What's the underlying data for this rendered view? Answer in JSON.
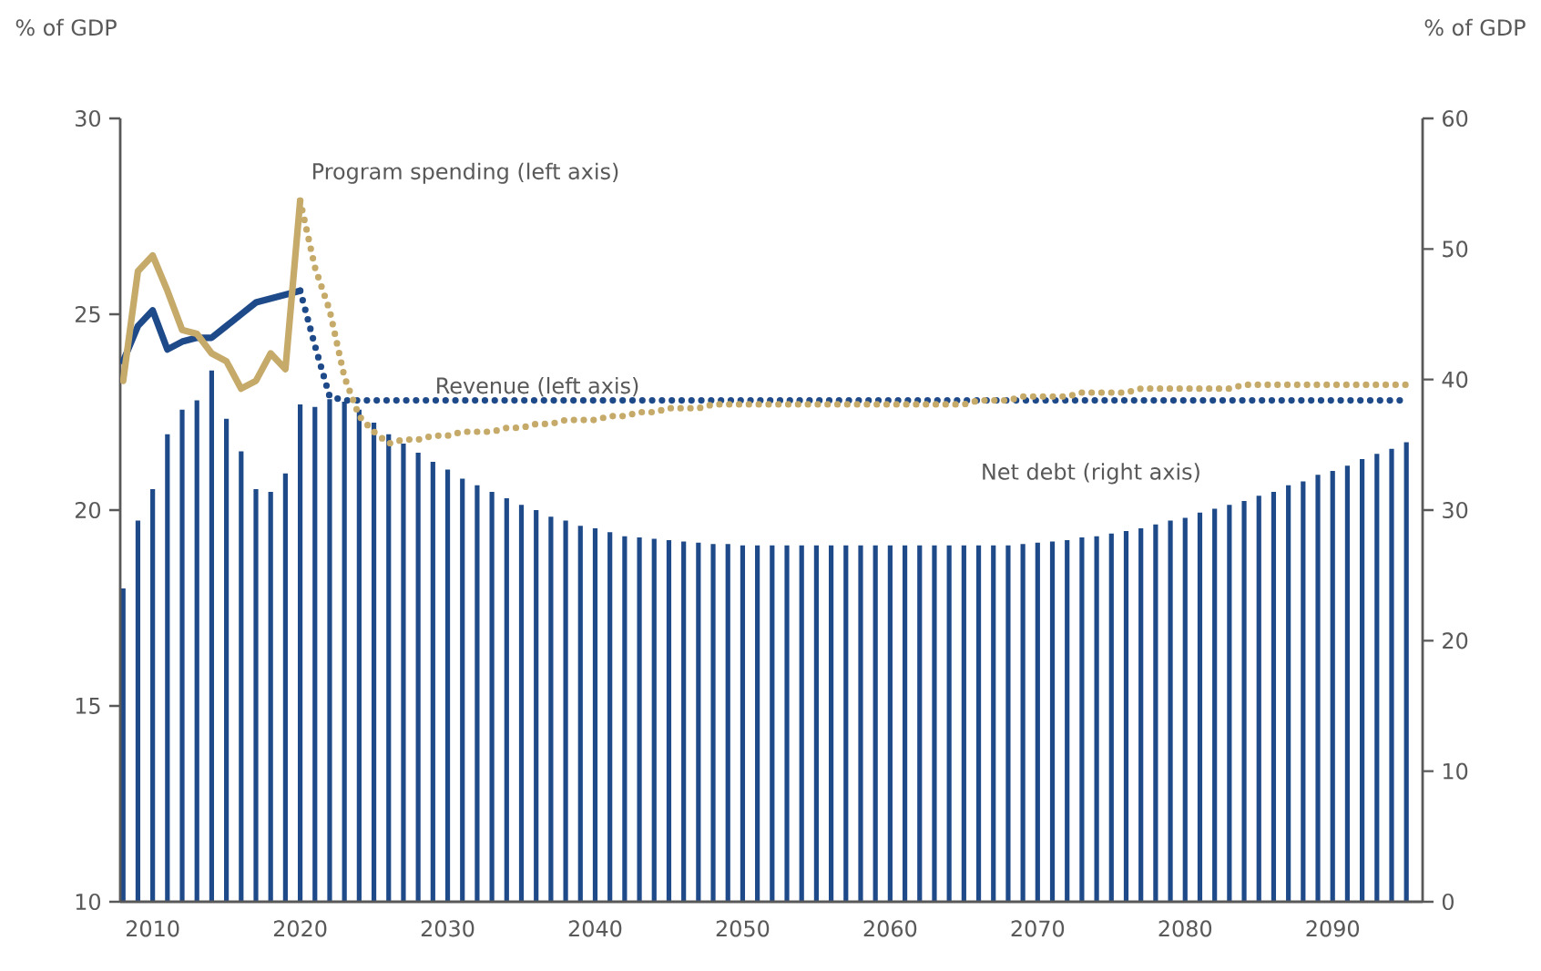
{
  "chart_data": {
    "type": "line",
    "ylabel": "% of GDP",
    "y2label": "% of GDP",
    "xlim": [
      2007.8,
      2096.1
    ],
    "xticks": [
      2010,
      2020,
      2030,
      2040,
      2050,
      2060,
      2070,
      2080,
      2090
    ],
    "ylim": [
      10,
      30
    ],
    "yticks": [
      10,
      15,
      20,
      25,
      30
    ],
    "y2lim": [
      0,
      60
    ],
    "y2ticks": [
      0,
      10,
      20,
      30,
      40,
      50,
      60
    ],
    "series": [
      {
        "type": "bar",
        "axis": "y2",
        "name": "Net debt (right axis)",
        "color": "#1f4a8a",
        "x": [
          2008,
          2009,
          2010,
          2011,
          2012,
          2013,
          2014,
          2015,
          2016,
          2017,
          2018,
          2019,
          2020,
          2021,
          2022,
          2023,
          2024,
          2025,
          2026,
          2027,
          2028,
          2029,
          2030,
          2031,
          2032,
          2033,
          2034,
          2035,
          2036,
          2037,
          2038,
          2039,
          2040,
          2041,
          2042,
          2043,
          2044,
          2045,
          2046,
          2047,
          2048,
          2049,
          2050,
          2051,
          2052,
          2053,
          2054,
          2055,
          2056,
          2057,
          2058,
          2059,
          2060,
          2061,
          2062,
          2063,
          2064,
          2065,
          2066,
          2067,
          2068,
          2069,
          2070,
          2071,
          2072,
          2073,
          2074,
          2075,
          2076,
          2077,
          2078,
          2079,
          2080,
          2081,
          2082,
          2083,
          2084,
          2085,
          2086,
          2087,
          2088,
          2089,
          2090,
          2091,
          2092,
          2093,
          2094,
          2095
        ],
        "values": [
          24.0,
          29.2,
          31.6,
          35.8,
          37.7,
          38.4,
          40.7,
          37.0,
          34.5,
          31.6,
          31.4,
          32.8,
          38.1,
          37.9,
          38.5,
          38.3,
          37.7,
          36.7,
          35.8,
          35.1,
          34.4,
          33.7,
          33.1,
          32.4,
          31.9,
          31.4,
          30.9,
          30.4,
          30.0,
          29.5,
          29.2,
          28.8,
          28.6,
          28.3,
          28.0,
          27.9,
          27.8,
          27.7,
          27.6,
          27.5,
          27.4,
          27.4,
          27.3,
          27.3,
          27.3,
          27.3,
          27.3,
          27.3,
          27.3,
          27.3,
          27.3,
          27.3,
          27.3,
          27.3,
          27.3,
          27.3,
          27.3,
          27.3,
          27.3,
          27.3,
          27.3,
          27.4,
          27.5,
          27.6,
          27.7,
          27.9,
          28.0,
          28.2,
          28.4,
          28.6,
          28.9,
          29.2,
          29.4,
          29.8,
          30.1,
          30.4,
          30.7,
          31.1,
          31.4,
          31.9,
          32.2,
          32.7,
          33.0,
          33.4,
          33.9,
          34.3,
          34.7,
          35.2
        ]
      },
      {
        "color": "#1f4a8a",
        "line_style": "solid",
        "x": [
          2008,
          2009,
          2010,
          2011,
          2012,
          2013,
          2014,
          2015,
          2016,
          2017,
          2018,
          2019,
          2020
        ],
        "values": [
          23.8,
          24.7,
          25.1,
          24.1,
          24.3,
          24.4,
          24.4,
          24.7,
          25.0,
          25.3,
          25.4,
          25.5,
          25.6
        ]
      },
      {
        "name": "Revenue (left axis)",
        "color": "#1f4a8a",
        "line_style": "dotted",
        "x": [
          2020,
          2021,
          2022,
          2023,
          2024,
          2025,
          2026,
          2027,
          2028,
          2029,
          2030,
          2031,
          2032,
          2033,
          2034,
          2035,
          2036,
          2037,
          2038,
          2039,
          2040,
          2041,
          2042,
          2043,
          2044,
          2045,
          2046,
          2047,
          2048,
          2049,
          2050,
          2051,
          2052,
          2053,
          2054,
          2055,
          2056,
          2057,
          2058,
          2059,
          2060,
          2061,
          2062,
          2063,
          2064,
          2065,
          2066,
          2067,
          2068,
          2069,
          2070,
          2071,
          2072,
          2073,
          2074,
          2075,
          2076,
          2077,
          2078,
          2079,
          2080,
          2081,
          2082,
          2083,
          2084,
          2085,
          2086,
          2087,
          2088,
          2089,
          2090,
          2091,
          2092,
          2093,
          2094,
          2095
        ],
        "values": [
          25.6,
          24.2,
          22.9,
          22.8,
          22.8,
          22.8,
          22.8,
          22.8,
          22.8,
          22.8,
          22.8,
          22.8,
          22.8,
          22.8,
          22.8,
          22.8,
          22.8,
          22.8,
          22.8,
          22.8,
          22.8,
          22.8,
          22.8,
          22.8,
          22.8,
          22.8,
          22.8,
          22.8,
          22.8,
          22.8,
          22.8,
          22.8,
          22.8,
          22.8,
          22.8,
          22.8,
          22.8,
          22.8,
          22.8,
          22.8,
          22.8,
          22.8,
          22.8,
          22.8,
          22.8,
          22.8,
          22.8,
          22.8,
          22.8,
          22.8,
          22.8,
          22.8,
          22.8,
          22.8,
          22.8,
          22.8,
          22.8,
          22.8,
          22.8,
          22.8,
          22.8,
          22.8,
          22.8,
          22.8,
          22.8,
          22.8,
          22.8,
          22.8,
          22.8,
          22.8,
          22.8,
          22.8,
          22.8,
          22.8,
          22.8,
          22.8
        ]
      },
      {
        "name": "Program spending (left axis)",
        "color": "#c6aa6a",
        "line_style": "solid",
        "x": [
          2008,
          2009,
          2010,
          2011,
          2012,
          2013,
          2014,
          2015,
          2016,
          2017,
          2018,
          2019,
          2020
        ],
        "values": [
          23.3,
          26.1,
          26.5,
          25.6,
          24.6,
          24.5,
          24.0,
          23.8,
          23.1,
          23.3,
          24.0,
          23.6,
          27.9
        ]
      },
      {
        "color": "#c6aa6a",
        "line_style": "dotted",
        "x": [
          2020,
          2021,
          2022,
          2023,
          2024,
          2025,
          2026,
          2027,
          2028,
          2029,
          2030,
          2031,
          2032,
          2033,
          2034,
          2035,
          2036,
          2037,
          2038,
          2039,
          2040,
          2041,
          2042,
          2043,
          2044,
          2045,
          2046,
          2047,
          2048,
          2049,
          2050,
          2051,
          2052,
          2053,
          2054,
          2055,
          2056,
          2057,
          2058,
          2059,
          2060,
          2061,
          2062,
          2063,
          2064,
          2065,
          2066,
          2067,
          2068,
          2069,
          2070,
          2071,
          2072,
          2073,
          2074,
          2075,
          2076,
          2077,
          2078,
          2079,
          2080,
          2081,
          2082,
          2083,
          2084,
          2085,
          2086,
          2087,
          2088,
          2089,
          2090,
          2091,
          2092,
          2093,
          2094,
          2095
        ],
        "values": [
          27.9,
          26.2,
          25.1,
          23.4,
          22.4,
          22.0,
          21.7,
          21.8,
          21.8,
          21.9,
          21.9,
          22.0,
          22.0,
          22.0,
          22.1,
          22.1,
          22.2,
          22.2,
          22.3,
          22.3,
          22.3,
          22.4,
          22.4,
          22.5,
          22.5,
          22.6,
          22.6,
          22.6,
          22.7,
          22.7,
          22.7,
          22.7,
          22.7,
          22.7,
          22.7,
          22.7,
          22.7,
          22.7,
          22.7,
          22.7,
          22.7,
          22.7,
          22.7,
          22.7,
          22.7,
          22.7,
          22.8,
          22.8,
          22.8,
          22.9,
          22.9,
          22.9,
          22.9,
          23.0,
          23.0,
          23.0,
          23.0,
          23.1,
          23.1,
          23.1,
          23.1,
          23.1,
          23.1,
          23.1,
          23.2,
          23.2,
          23.2,
          23.2,
          23.2,
          23.2,
          23.2,
          23.2,
          23.2,
          23.2,
          23.2,
          23.2
        ]
      }
    ]
  }
}
